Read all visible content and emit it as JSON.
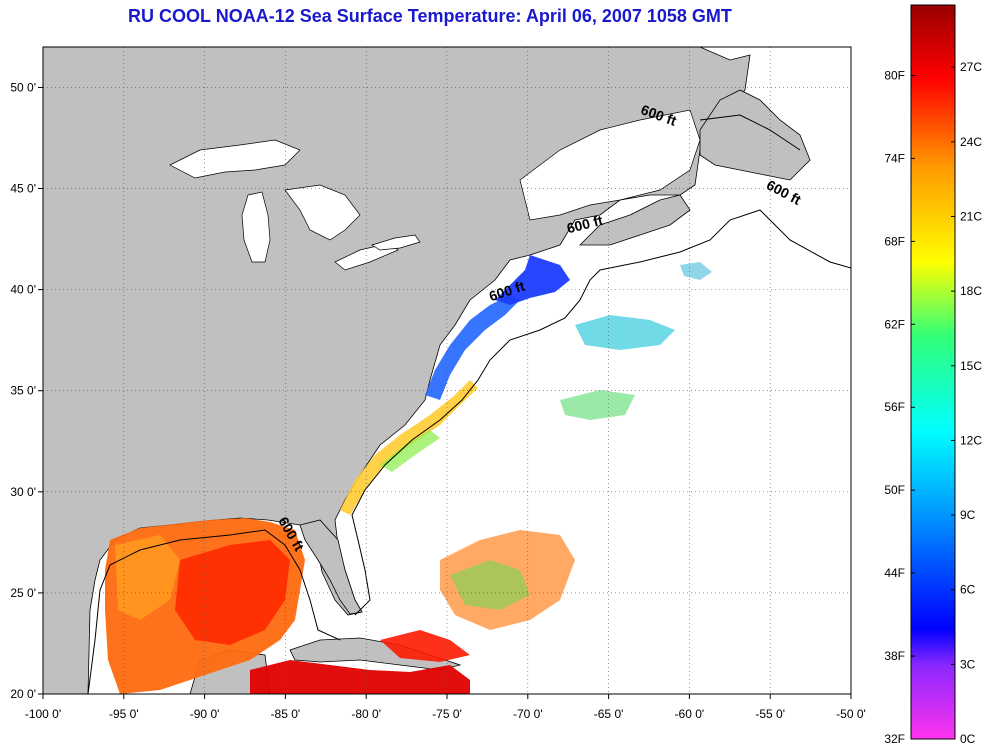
{
  "title": "RU COOL  NOAA-12  Sea Surface Temperature:  April 06, 2007 1058 GMT",
  "map": {
    "lon_range": [
      -100,
      -50
    ],
    "lat_range": [
      20,
      52
    ],
    "grid": true,
    "lon_ticks": [
      {
        "value": -100,
        "label": "-100 0'"
      },
      {
        "value": -95,
        "label": "-95 0'"
      },
      {
        "value": -90,
        "label": "-90 0'"
      },
      {
        "value": -85,
        "label": "-85 0'"
      },
      {
        "value": -80,
        "label": "-80 0'"
      },
      {
        "value": -75,
        "label": "-75 0'"
      },
      {
        "value": -70,
        "label": "-70 0'"
      },
      {
        "value": -65,
        "label": "-65 0'"
      },
      {
        "value": -60,
        "label": "-60 0'"
      },
      {
        "value": -55,
        "label": "-55 0'"
      },
      {
        "value": -50,
        "label": "-50 0'"
      }
    ],
    "lat_ticks": [
      {
        "value": 20,
        "label": "20 0'"
      },
      {
        "value": 25,
        "label": "25 0'"
      },
      {
        "value": 30,
        "label": "30 0'"
      },
      {
        "value": 35,
        "label": "35 0'"
      },
      {
        "value": 40,
        "label": "40 0'"
      },
      {
        "value": 45,
        "label": "45 0'"
      },
      {
        "value": 50,
        "label": "50 0'"
      }
    ],
    "contour_labels": [
      {
        "text": "600 ft",
        "lon": -62.0,
        "lat": 48.4,
        "rotate": 20
      },
      {
        "text": "600 ft",
        "lon": -54.3,
        "lat": 44.6,
        "rotate": 28
      },
      {
        "text": "600 ft",
        "lon": -66.4,
        "lat": 43.0,
        "rotate": -14
      },
      {
        "text": "600 ft",
        "lon": -71.2,
        "lat": 39.7,
        "rotate": -18
      },
      {
        "text": "600 ft",
        "lon": -84.9,
        "lat": 27.8,
        "rotate": 60
      }
    ],
    "colors": {
      "land": "#c0c0c0",
      "ocean": "#ffffff",
      "title": "#1a1acc"
    }
  },
  "colorbar": {
    "f_labels": [
      {
        "value": 32,
        "label": "32F"
      },
      {
        "value": 38,
        "label": "38F"
      },
      {
        "value": 44,
        "label": "44F"
      },
      {
        "value": 50,
        "label": "50F"
      },
      {
        "value": 56,
        "label": "56F"
      },
      {
        "value": 62,
        "label": "62F"
      },
      {
        "value": 68,
        "label": "68F"
      },
      {
        "value": 74,
        "label": "74F"
      },
      {
        "value": 80,
        "label": "80F"
      }
    ],
    "c_labels": [
      {
        "value": 0,
        "label": "0C"
      },
      {
        "value": 3,
        "label": "3C"
      },
      {
        "value": 6,
        "label": "6C"
      },
      {
        "value": 9,
        "label": "9C"
      },
      {
        "value": 12,
        "label": "12C"
      },
      {
        "value": 15,
        "label": "15C"
      },
      {
        "value": 18,
        "label": "18C"
      },
      {
        "value": 21,
        "label": "21C"
      },
      {
        "value": 24,
        "label": "24C"
      },
      {
        "value": 27,
        "label": "27C"
      }
    ],
    "range_c": [
      0,
      29.5
    ],
    "stops": [
      "#ff33cc",
      "#0000ff",
      "#00ffff",
      "#ffff00",
      "#ff0000",
      "#990000"
    ]
  }
}
